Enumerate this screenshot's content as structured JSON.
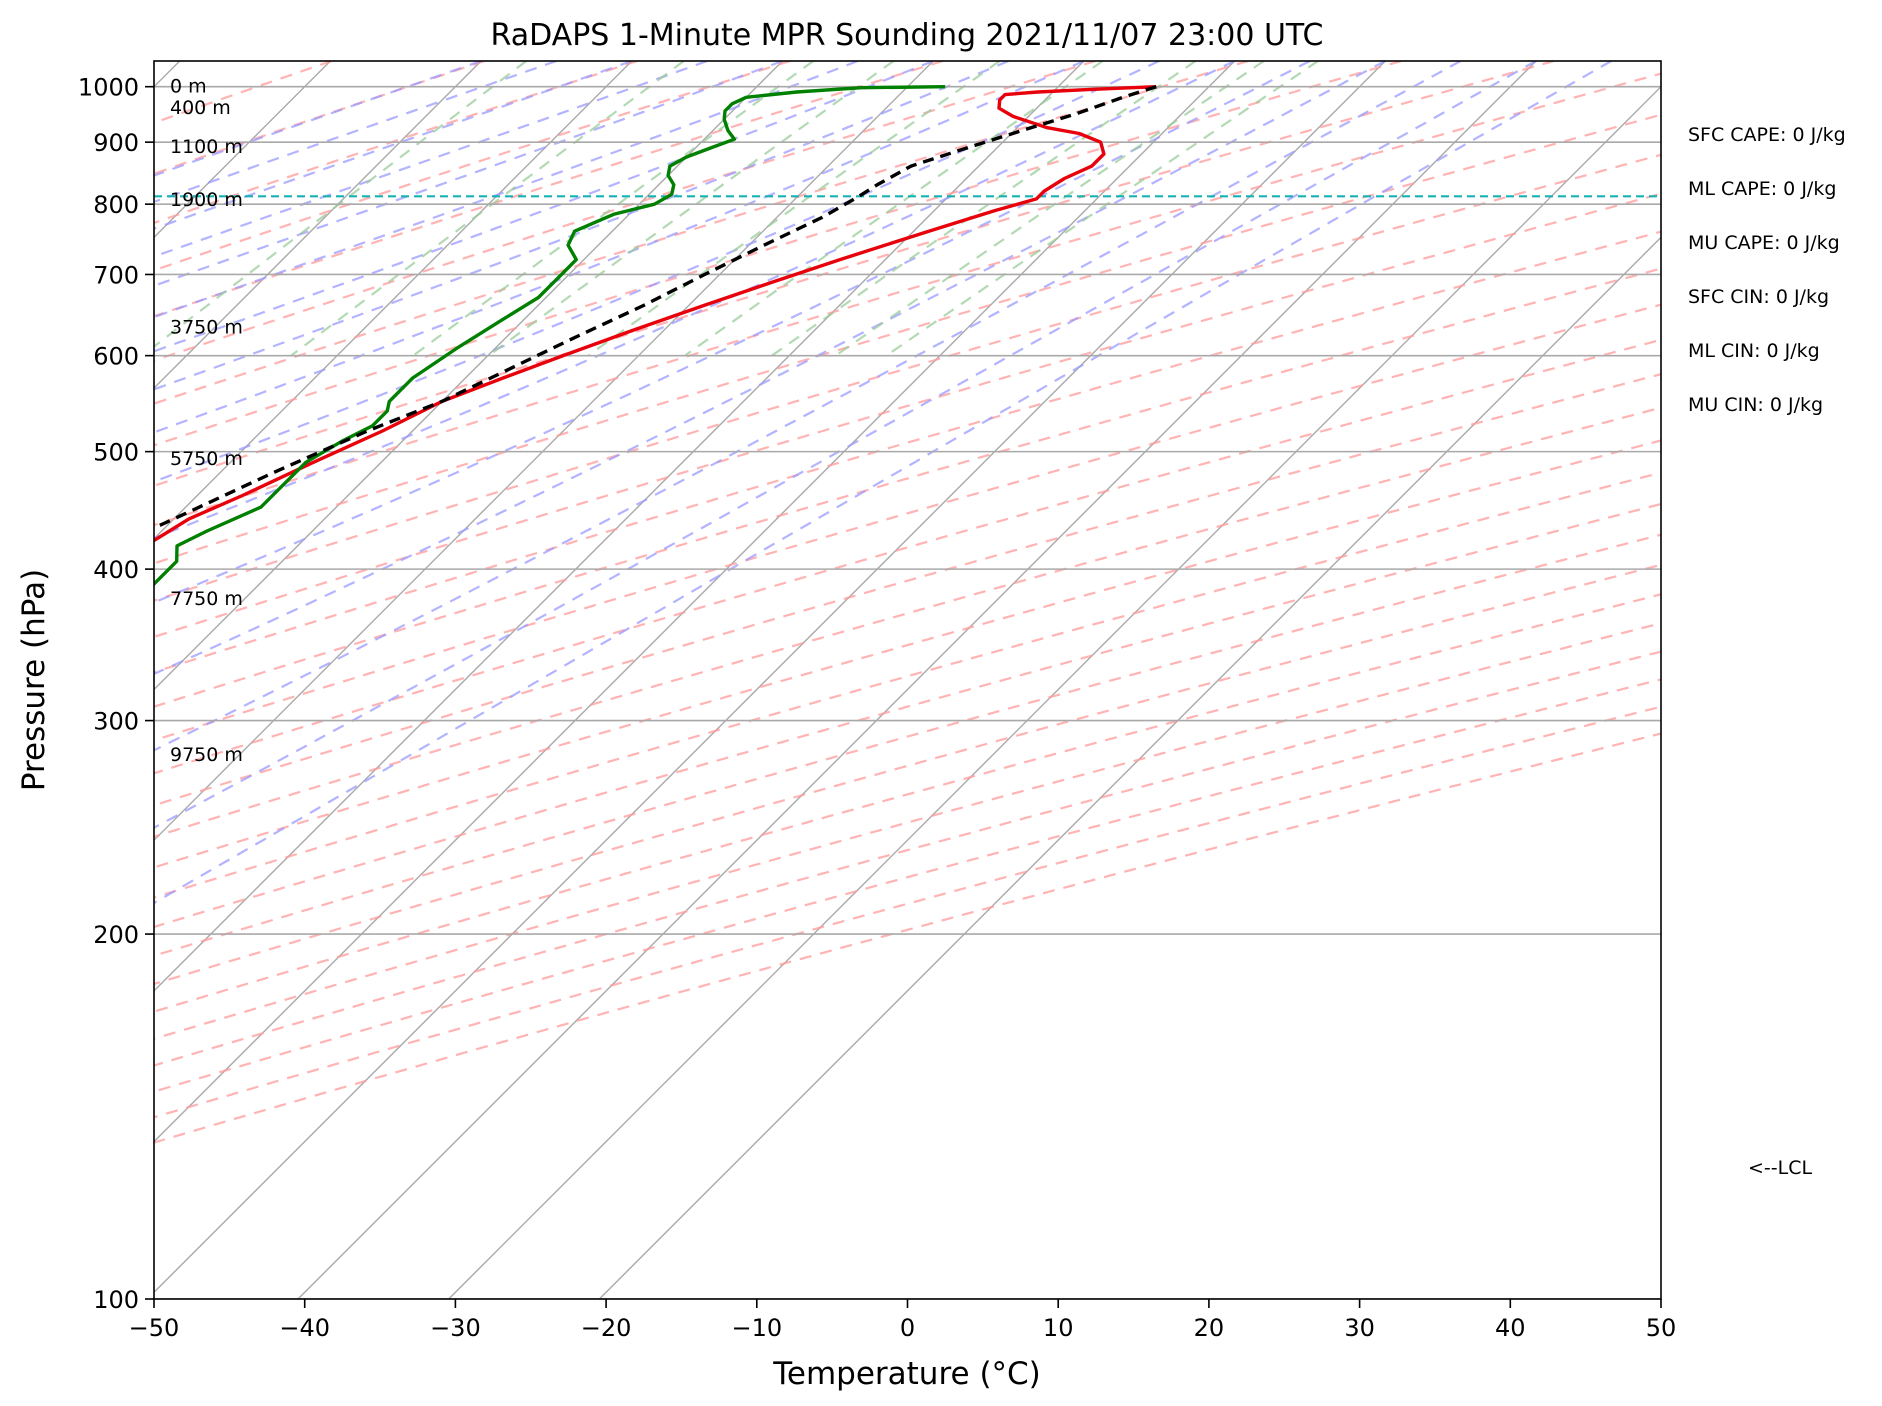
{
  "chart_data": {
    "type": "line",
    "title": "RaDAPS 1-Minute MPR Sounding 2021/11/07 23:00 UTC",
    "xlabel": "Temperature (°C)",
    "ylabel": "Pressure (hPa)",
    "xlim": [
      -50,
      50
    ],
    "ylim": [
      1050,
      100
    ],
    "y_scale": "log",
    "skew": "skew-T log-P",
    "xticks": [
      -50,
      -40,
      -30,
      -20,
      -10,
      0,
      10,
      20,
      30,
      40,
      50
    ],
    "yticks": [
      100,
      200,
      300,
      400,
      500,
      600,
      700,
      800,
      900,
      1000
    ],
    "grid": true,
    "series": [
      {
        "name": "",
        "color": "#e8000b",
        "role": "temperature",
        "points": [
          [
            1000,
            16.5
          ],
          [
            995,
            12.5
          ],
          [
            990,
            9
          ],
          [
            985,
            7
          ],
          [
            975,
            7
          ],
          [
            960,
            7.5
          ],
          [
            945,
            9
          ],
          [
            925,
            12
          ],
          [
            915,
            14.5
          ],
          [
            900,
            16.5
          ],
          [
            880,
            17.5
          ],
          [
            860,
            17.5
          ],
          [
            840,
            16.5
          ],
          [
            820,
            16
          ],
          [
            808,
            16
          ],
          [
            790,
            14
          ],
          [
            760,
            11
          ],
          [
            720,
            7
          ],
          [
            690,
            4
          ],
          [
            660,
            1
          ],
          [
            630,
            -2
          ],
          [
            600,
            -5
          ],
          [
            575,
            -7.5
          ],
          [
            550,
            -10
          ],
          [
            520,
            -12
          ],
          [
            490,
            -14.5
          ],
          [
            460,
            -17
          ],
          [
            440,
            -19
          ],
          [
            420,
            -20
          ],
          [
            400,
            -21
          ],
          [
            380,
            -22.5
          ],
          [
            360,
            -24
          ],
          [
            340,
            -26
          ],
          [
            320,
            -28
          ],
          [
            300,
            -31
          ],
          [
            280,
            -35
          ],
          [
            265,
            -38
          ]
        ]
      },
      {
        "name": "",
        "color": "#008000",
        "role": "dewpoint",
        "points": [
          [
            1000,
            2.5
          ],
          [
            998,
            -3
          ],
          [
            990,
            -7
          ],
          [
            980,
            -10
          ],
          [
            968,
            -10.5
          ],
          [
            955,
            -10.5
          ],
          [
            940,
            -10
          ],
          [
            920,
            -9
          ],
          [
            905,
            -8
          ],
          [
            890,
            -9
          ],
          [
            875,
            -10
          ],
          [
            860,
            -10.5
          ],
          [
            845,
            -10
          ],
          [
            830,
            -9
          ],
          [
            815,
            -8.5
          ],
          [
            800,
            -9
          ],
          [
            785,
            -11
          ],
          [
            760,
            -12.5
          ],
          [
            740,
            -12
          ],
          [
            720,
            -10.5
          ],
          [
            700,
            -10.5
          ],
          [
            670,
            -10.5
          ],
          [
            640,
            -11.5
          ],
          [
            610,
            -12.5
          ],
          [
            575,
            -13.5
          ],
          [
            550,
            -13.5
          ],
          [
            540,
            -13
          ],
          [
            525,
            -13
          ],
          [
            510,
            -14
          ],
          [
            490,
            -15
          ],
          [
            470,
            -15
          ],
          [
            450,
            -15
          ],
          [
            430,
            -17
          ],
          [
            418,
            -18
          ],
          [
            406,
            -17
          ],
          [
            385,
            -17
          ],
          [
            370,
            -18
          ],
          [
            355,
            -18
          ],
          [
            335,
            -20
          ],
          [
            313,
            -24.5
          ],
          [
            300,
            -30
          ],
          [
            293,
            -35
          ]
        ]
      },
      {
        "name": "",
        "color": "#000000",
        "role": "parcel",
        "points": [
          [
            1000,
            16.5
          ],
          [
            980,
            15
          ],
          [
            950,
            13
          ],
          [
            920,
            10.5
          ],
          [
            890,
            8
          ],
          [
            860,
            5.5
          ],
          [
            830,
            4.5
          ],
          [
            810,
            4
          ],
          [
            780,
            3
          ],
          [
            740,
            1
          ],
          [
            700,
            -1
          ],
          [
            660,
            -3
          ],
          [
            620,
            -5.5
          ],
          [
            580,
            -8
          ],
          [
            550,
            -10
          ],
          [
            520,
            -13
          ],
          [
            480,
            -16.5
          ],
          [
            440,
            -20
          ],
          [
            400,
            -24
          ],
          [
            360,
            -28.5
          ],
          [
            320,
            -34
          ],
          [
            300,
            -37
          ],
          [
            280,
            -41
          ],
          [
            270,
            -43
          ]
        ]
      }
    ],
    "lcl_pressure": 812,
    "lcl_label": "<--LCL",
    "height_labels": [
      {
        "p": 1000,
        "label": "0 m"
      },
      {
        "p": 960,
        "label": "400 m"
      },
      {
        "p": 892,
        "label": "1100 m"
      },
      {
        "p": 806,
        "label": "1900 m"
      },
      {
        "p": 633,
        "label": "3750 m"
      },
      {
        "p": 493,
        "label": "5750 m"
      },
      {
        "p": 378,
        "label": "7750 m"
      },
      {
        "p": 281,
        "label": "9750 m"
      }
    ],
    "stats": [
      "SFC CAPE: 0 J/kg",
      "ML CAPE: 0 J/kg",
      "MU CAPE: 0 J/kg",
      "SFC CIN: 0 J/kg",
      "ML CIN: 0 J/kg",
      "MU CIN: 0 J/kg"
    ],
    "background_lines": {
      "isotherm_color": "#a9a9a9",
      "dry_adiabat_color": "#ff9999",
      "moist_adiabat_color": "#9999ff",
      "mixing_ratio_color": "#99cc99",
      "lcl_line_color": "#17b2b2"
    }
  }
}
